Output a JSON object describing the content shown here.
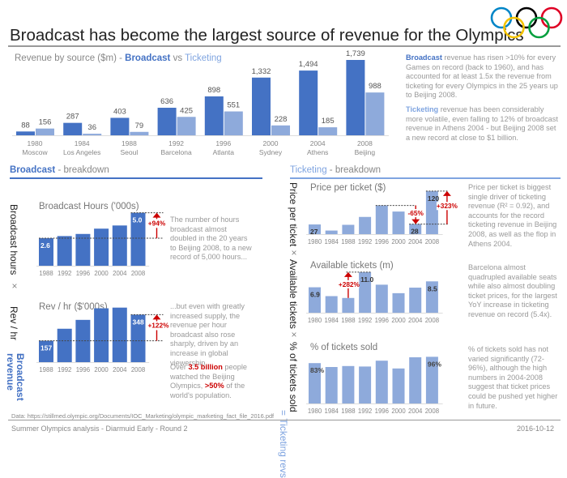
{
  "title": "Broadcast has become the largest source of revenue for the Olympics",
  "colors": {
    "broadcast": "#4472c4",
    "ticketing": "#8eaadb",
    "accent_red": "#cc0000",
    "rings": [
      "#0085c7",
      "#000000",
      "#df0024",
      "#f4c300",
      "#009f3d"
    ]
  },
  "main_chart": {
    "subtitle_prefix": "Revenue by source ($m) - ",
    "subtitle_broadcast": "Broadcast",
    "subtitle_vs": " vs ",
    "subtitle_ticketing": "Ticketing"
  },
  "notes": {
    "broadcast_lead": "Broadcast",
    "broadcast_text": " revenue has risen >10% for every Games on record (back to 1960), and has accounted for at least 1.5x the revenue from ticketing for every Olympics in the 25 years up to Beijing 2008.",
    "ticketing_lead": "Ticketing",
    "ticketing_text": " revenue has been considerably more volatile, even falling to 12% of broadcast revenue in Athens 2004 - but Beijing 2008 set a new record at close to $1 billion."
  },
  "broadcast_section": {
    "head_bold": "Broadcast",
    "head_rest": " - breakdown",
    "vert_labels": {
      "hours": "Broadcast hours",
      "times": "×",
      "revhr": "Rev / hr",
      "equals": "=",
      "result": "Broadcast revenue"
    },
    "hours_note": "The number of hours broadcast almost doubled in the 20 years to Beijing 2008, to a new record of 5,000 hours...",
    "revhr_note": "...but even with greatly increased supply, the revenue per hour broadcast also rose sharply, driven by an increase in global viewership.",
    "viewers_note_1": "Over ",
    "viewers_note_bold1": "3.5 billion",
    "viewers_note_2": " people watched the Beijing Olympics, ",
    "viewers_note_bold2": ">50%",
    "viewers_note_3": " of the world's population."
  },
  "ticketing_section": {
    "head_bold": "Ticketing",
    "head_rest": " - breakdown",
    "vert_labels": {
      "price": "Price per ticket",
      "times1": "×",
      "avail": "Available tickets",
      "times2": "×",
      "sold": "% of tickets sold",
      "equals": "=",
      "result": "Ticketing revs"
    },
    "price_note": "Price per ticket is biggest single driver of ticketing revenue (R² = 0.92), and accounts for the record ticketing revenue in Beijing 2008, as well as the flop in Athens 2004.",
    "avail_note": "Barcelona almost quadrupled available seats while also almost doubling ticket prices, for the largest YoY increase in ticketing revenue on record (5.4x).",
    "sold_note": "% of tickets sold has not varied significantly (72-96%), although the high numbers in 2004-2008 suggest that ticket prices could be pushed yet higher in future."
  },
  "footer": {
    "source": "Data: https://stillmed.olympic.org/Documents/IOC_Marketing/olympic_marketing_fact_file_2016.pdf",
    "author": "Summer Olympics analysis - Diarmuid Early - Round 2",
    "date": "2016-10-12"
  },
  "chart_data": [
    {
      "id": "revenue",
      "type": "bar",
      "title": "Revenue by source ($m) - Broadcast vs Ticketing",
      "categories": [
        "1980",
        "1984",
        "1988",
        "1992",
        "1996",
        "2000",
        "2004",
        "2008"
      ],
      "category_sublabels": [
        "Moscow",
        "Los Angeles",
        "Seoul",
        "Barcelona",
        "Atlanta",
        "Sydney",
        "Athens",
        "Beijing"
      ],
      "series": [
        {
          "name": "Broadcast",
          "values": [
            88,
            287,
            403,
            636,
            898,
            1332,
            1494,
            1739
          ],
          "labels": [
            "88",
            "287",
            "403",
            "636",
            "898",
            "1,332",
            "1,494",
            "1,739"
          ]
        },
        {
          "name": "Ticketing",
          "values": [
            156,
            36,
            79,
            425,
            551,
            228,
            185,
            988
          ],
          "labels": [
            "156",
            "36",
            "79",
            "425",
            "551",
            "228",
            "185",
            "988"
          ]
        }
      ],
      "ylim": [
        0,
        1800
      ],
      "grid": false
    },
    {
      "id": "hours",
      "type": "bar",
      "title": "Broadcast Hours ('000s)",
      "categories": [
        "1988",
        "1992",
        "1996",
        "2000",
        "2004",
        "2008"
      ],
      "values": [
        2.6,
        2.8,
        3.0,
        3.5,
        3.8,
        5.0
      ],
      "data_labels": {
        "0": "2.6",
        "5": "5.0"
      },
      "annotation": {
        "text": "+94%",
        "from": 0,
        "to": 5,
        "direction": "up"
      },
      "ylim": [
        0,
        5.2
      ]
    },
    {
      "id": "revhr",
      "type": "bar",
      "title": "Rev / hr ($'000s)",
      "categories": [
        "1988",
        "1992",
        "1996",
        "2000",
        "2004",
        "2008"
      ],
      "values": [
        157,
        245,
        310,
        395,
        400,
        348
      ],
      "data_labels": {
        "0": "157",
        "5": "348"
      },
      "annotation": {
        "text": "+122%",
        "from": 0,
        "to": 5,
        "direction": "up"
      },
      "ylim": [
        0,
        410
      ]
    },
    {
      "id": "price",
      "type": "bar",
      "title": "Price per ticket ($)",
      "categories": [
        "1980",
        "1984",
        "1988",
        "1992",
        "1996",
        "2000",
        "2004",
        "2008"
      ],
      "values": [
        27,
        10,
        26,
        48,
        80,
        63,
        28,
        120
      ],
      "data_labels": {
        "0": "27",
        "6": "28",
        "7": "120"
      },
      "annotations": [
        {
          "text": "-65%",
          "from": 4,
          "to": 6,
          "direction": "down"
        },
        {
          "text": "+323%",
          "from": 6,
          "to": 7,
          "direction": "up"
        }
      ],
      "ylim": [
        0,
        122
      ]
    },
    {
      "id": "avail",
      "type": "bar",
      "title": "Available tickets (m)",
      "categories": [
        "1980",
        "1984",
        "1988",
        "1992",
        "1996",
        "2000",
        "2004",
        "2008"
      ],
      "values": [
        6.9,
        4.5,
        4.0,
        11.0,
        7.6,
        5.3,
        6.8,
        8.5
      ],
      "data_labels": {
        "0": "6.9",
        "3": "11.0",
        "7": "8.5"
      },
      "annotation": {
        "text": "+282%",
        "from": 2,
        "to": 3,
        "direction": "up"
      },
      "ylim": [
        0,
        11.2
      ]
    },
    {
      "id": "sold",
      "type": "bar",
      "title": "% of tickets sold",
      "categories": [
        "1980",
        "1984",
        "1988",
        "1992",
        "1996",
        "2000",
        "2004",
        "2008"
      ],
      "values": [
        83,
        75,
        77,
        76,
        88,
        72,
        95,
        96
      ],
      "data_labels": {
        "0": "83%",
        "7": "96%"
      },
      "ylim": [
        0,
        100
      ]
    }
  ]
}
